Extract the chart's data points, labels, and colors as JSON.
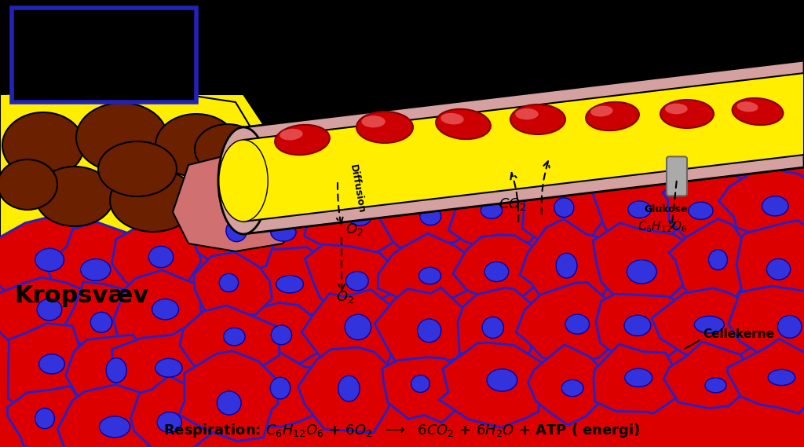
{
  "background_color": "#000000",
  "tissue_color": "#dd0000",
  "tissue_outline_color": "#2222cc",
  "cell_nucleus_color": "#3333dd",
  "capillary_wall_color": "#d4a0a0",
  "capillary_interior_color": "#ffee00",
  "rbc_color": "#cc0000",
  "fat_tissue_color": "#ffee00",
  "fat_cell_color": "#6b2000",
  "fat_outline_color": "#000000",
  "glucose_transporter_color": "#aaaaaa",
  "arrow_color": "#000000",
  "text_color": "#000000",
  "label_box_color": "#2222bb",
  "pink_transition_color": "#e08080",
  "labels": {
    "kropsvav": "Kropsvæv",
    "diffusion": "Diffusion",
    "o2_upper": "O₂",
    "o2_lower": "O₂",
    "co2": "CO₂",
    "glukose": "Glukose",
    "cellekerne": "Cellekerne"
  }
}
